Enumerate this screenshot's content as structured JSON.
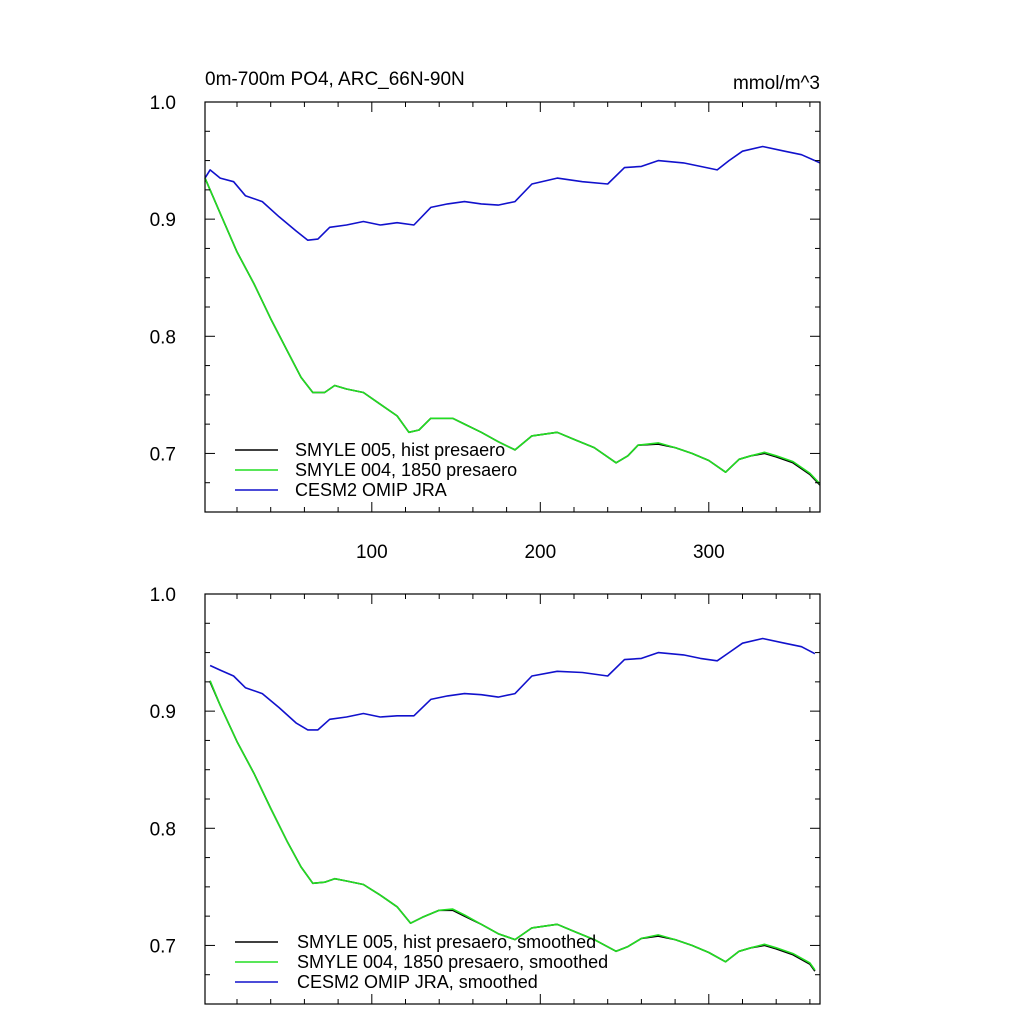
{
  "chart_data": [
    {
      "type": "line",
      "title": "0m-700m PO4, ARC_66N-90N",
      "units": "mmol/m^3",
      "xlim": [
        1,
        366
      ],
      "ylim": [
        0.65,
        1.0
      ],
      "x_ticks": [
        100,
        200,
        300
      ],
      "y_ticks": [
        0.7,
        0.8,
        0.9,
        1.0
      ],
      "y_tick_labels": [
        "0.7",
        "0.8",
        "0.9",
        "1.0"
      ],
      "x_tick_labels": [
        "100",
        "200",
        "300"
      ],
      "legend_position": "bottom-left",
      "series": [
        {
          "name": "SMYLE 005, hist presaero",
          "color": "#000000",
          "points": [
            [
              1,
              0.935
            ],
            [
              10,
              0.905
            ],
            [
              20,
              0.872
            ],
            [
              30,
              0.845
            ],
            [
              40,
              0.815
            ],
            [
              50,
              0.787
            ],
            [
              58,
              0.765
            ],
            [
              65,
              0.752
            ],
            [
              72,
              0.752
            ],
            [
              78,
              0.758
            ],
            [
              85,
              0.755
            ],
            [
              95,
              0.752
            ],
            [
              105,
              0.742
            ],
            [
              115,
              0.732
            ],
            [
              122,
              0.718
            ],
            [
              128,
              0.72
            ],
            [
              135,
              0.73
            ],
            [
              148,
              0.73
            ],
            [
              155,
              0.725
            ],
            [
              165,
              0.718
            ],
            [
              175,
              0.71
            ],
            [
              185,
              0.703
            ],
            [
              195,
              0.715
            ],
            [
              210,
              0.718
            ],
            [
              220,
              0.712
            ],
            [
              232,
              0.705
            ],
            [
              245,
              0.692
            ],
            [
              252,
              0.698
            ],
            [
              258,
              0.707
            ],
            [
              270,
              0.708
            ],
            [
              280,
              0.705
            ],
            [
              290,
              0.7
            ],
            [
              300,
              0.694
            ],
            [
              310,
              0.684
            ],
            [
              318,
              0.695
            ],
            [
              325,
              0.698
            ],
            [
              333,
              0.7
            ],
            [
              340,
              0.697
            ],
            [
              350,
              0.692
            ],
            [
              360,
              0.682
            ],
            [
              366,
              0.673
            ]
          ]
        },
        {
          "name": "SMYLE 004, 1850 presaero",
          "color": "#22dd22",
          "points": [
            [
              1,
              0.935
            ],
            [
              10,
              0.905
            ],
            [
              20,
              0.872
            ],
            [
              30,
              0.845
            ],
            [
              40,
              0.815
            ],
            [
              50,
              0.787
            ],
            [
              58,
              0.765
            ],
            [
              65,
              0.752
            ],
            [
              72,
              0.752
            ],
            [
              78,
              0.758
            ],
            [
              85,
              0.755
            ],
            [
              95,
              0.752
            ],
            [
              105,
              0.742
            ],
            [
              115,
              0.732
            ],
            [
              122,
              0.718
            ],
            [
              128,
              0.72
            ],
            [
              135,
              0.73
            ],
            [
              148,
              0.73
            ],
            [
              155,
              0.725
            ],
            [
              165,
              0.718
            ],
            [
              175,
              0.71
            ],
            [
              185,
              0.703
            ],
            [
              195,
              0.715
            ],
            [
              210,
              0.718
            ],
            [
              220,
              0.712
            ],
            [
              232,
              0.705
            ],
            [
              245,
              0.692
            ],
            [
              252,
              0.698
            ],
            [
              258,
              0.707
            ],
            [
              270,
              0.709
            ],
            [
              280,
              0.705
            ],
            [
              290,
              0.7
            ],
            [
              300,
              0.694
            ],
            [
              310,
              0.684
            ],
            [
              318,
              0.695
            ],
            [
              325,
              0.698
            ],
            [
              333,
              0.701
            ],
            [
              340,
              0.698
            ],
            [
              350,
              0.693
            ],
            [
              360,
              0.683
            ],
            [
              366,
              0.674
            ]
          ]
        },
        {
          "name": "CESM2 OMIP JRA",
          "color": "#1111cc",
          "points": [
            [
              1,
              0.935
            ],
            [
              4,
              0.942
            ],
            [
              10,
              0.935
            ],
            [
              18,
              0.932
            ],
            [
              25,
              0.92
            ],
            [
              35,
              0.915
            ],
            [
              45,
              0.902
            ],
            [
              55,
              0.89
            ],
            [
              62,
              0.882
            ],
            [
              68,
              0.883
            ],
            [
              75,
              0.893
            ],
            [
              85,
              0.895
            ],
            [
              95,
              0.898
            ],
            [
              105,
              0.895
            ],
            [
              115,
              0.897
            ],
            [
              125,
              0.895
            ],
            [
              135,
              0.91
            ],
            [
              145,
              0.913
            ],
            [
              155,
              0.915
            ],
            [
              165,
              0.913
            ],
            [
              175,
              0.912
            ],
            [
              185,
              0.915
            ],
            [
              195,
              0.93
            ],
            [
              210,
              0.935
            ],
            [
              225,
              0.932
            ],
            [
              240,
              0.93
            ],
            [
              250,
              0.944
            ],
            [
              260,
              0.945
            ],
            [
              270,
              0.95
            ],
            [
              285,
              0.948
            ],
            [
              295,
              0.945
            ],
            [
              305,
              0.942
            ],
            [
              312,
              0.95
            ],
            [
              320,
              0.958
            ],
            [
              332,
              0.962
            ],
            [
              345,
              0.958
            ],
            [
              355,
              0.955
            ],
            [
              366,
              0.948
            ]
          ]
        }
      ]
    },
    {
      "type": "line",
      "xlim": [
        1,
        366
      ],
      "ylim": [
        0.65,
        1.0
      ],
      "x_ticks": [
        100,
        200,
        300
      ],
      "y_ticks": [
        0.7,
        0.8,
        0.9,
        1.0
      ],
      "y_tick_labels": [
        "0.7",
        "0.8",
        "0.9",
        "1.0"
      ],
      "legend_position": "bottom-left",
      "series": [
        {
          "name": "SMYLE 005, hist presaero, smoothed",
          "color": "#000000",
          "points": [
            [
              4,
              0.925
            ],
            [
              10,
              0.905
            ],
            [
              20,
              0.874
            ],
            [
              30,
              0.847
            ],
            [
              40,
              0.817
            ],
            [
              50,
              0.788
            ],
            [
              58,
              0.767
            ],
            [
              65,
              0.753
            ],
            [
              72,
              0.754
            ],
            [
              78,
              0.757
            ],
            [
              85,
              0.755
            ],
            [
              95,
              0.752
            ],
            [
              105,
              0.743
            ],
            [
              115,
              0.733
            ],
            [
              123,
              0.719
            ],
            [
              130,
              0.724
            ],
            [
              140,
              0.73
            ],
            [
              148,
              0.73
            ],
            [
              155,
              0.725
            ],
            [
              165,
              0.718
            ],
            [
              175,
              0.71
            ],
            [
              185,
              0.705
            ],
            [
              195,
              0.715
            ],
            [
              210,
              0.718
            ],
            [
              220,
              0.712
            ],
            [
              232,
              0.705
            ],
            [
              245,
              0.695
            ],
            [
              252,
              0.699
            ],
            [
              260,
              0.706
            ],
            [
              270,
              0.708
            ],
            [
              280,
              0.705
            ],
            [
              290,
              0.7
            ],
            [
              300,
              0.694
            ],
            [
              310,
              0.686
            ],
            [
              318,
              0.695
            ],
            [
              325,
              0.698
            ],
            [
              333,
              0.7
            ],
            [
              340,
              0.697
            ],
            [
              350,
              0.692
            ],
            [
              360,
              0.684
            ],
            [
              363,
              0.678
            ]
          ]
        },
        {
          "name": "SMYLE 004, 1850 presaero, smoothed",
          "color": "#22dd22",
          "points": [
            [
              4,
              0.926
            ],
            [
              10,
              0.905
            ],
            [
              20,
              0.874
            ],
            [
              30,
              0.847
            ],
            [
              40,
              0.817
            ],
            [
              50,
              0.788
            ],
            [
              58,
              0.767
            ],
            [
              65,
              0.753
            ],
            [
              72,
              0.754
            ],
            [
              78,
              0.757
            ],
            [
              85,
              0.755
            ],
            [
              95,
              0.752
            ],
            [
              105,
              0.743
            ],
            [
              115,
              0.733
            ],
            [
              123,
              0.719
            ],
            [
              130,
              0.724
            ],
            [
              140,
              0.73
            ],
            [
              148,
              0.731
            ],
            [
              155,
              0.726
            ],
            [
              165,
              0.718
            ],
            [
              175,
              0.71
            ],
            [
              185,
              0.705
            ],
            [
              195,
              0.715
            ],
            [
              210,
              0.718
            ],
            [
              220,
              0.712
            ],
            [
              232,
              0.705
            ],
            [
              245,
              0.695
            ],
            [
              252,
              0.699
            ],
            [
              260,
              0.706
            ],
            [
              270,
              0.709
            ],
            [
              280,
              0.705
            ],
            [
              290,
              0.7
            ],
            [
              300,
              0.694
            ],
            [
              310,
              0.686
            ],
            [
              318,
              0.695
            ],
            [
              325,
              0.698
            ],
            [
              333,
              0.701
            ],
            [
              340,
              0.698
            ],
            [
              350,
              0.693
            ],
            [
              360,
              0.685
            ],
            [
              363,
              0.679
            ]
          ]
        },
        {
          "name": "CESM2 OMIP JRA, smoothed",
          "color": "#1111cc",
          "points": [
            [
              4,
              0.939
            ],
            [
              10,
              0.935
            ],
            [
              18,
              0.93
            ],
            [
              25,
              0.92
            ],
            [
              35,
              0.915
            ],
            [
              45,
              0.903
            ],
            [
              55,
              0.89
            ],
            [
              62,
              0.884
            ],
            [
              68,
              0.884
            ],
            [
              75,
              0.893
            ],
            [
              85,
              0.895
            ],
            [
              95,
              0.898
            ],
            [
              105,
              0.895
            ],
            [
              115,
              0.896
            ],
            [
              125,
              0.896
            ],
            [
              135,
              0.91
            ],
            [
              145,
              0.913
            ],
            [
              155,
              0.915
            ],
            [
              165,
              0.914
            ],
            [
              175,
              0.912
            ],
            [
              185,
              0.915
            ],
            [
              195,
              0.93
            ],
            [
              210,
              0.934
            ],
            [
              225,
              0.933
            ],
            [
              240,
              0.93
            ],
            [
              250,
              0.944
            ],
            [
              260,
              0.945
            ],
            [
              270,
              0.95
            ],
            [
              285,
              0.948
            ],
            [
              295,
              0.945
            ],
            [
              305,
              0.943
            ],
            [
              312,
              0.95
            ],
            [
              320,
              0.958
            ],
            [
              332,
              0.962
            ],
            [
              345,
              0.958
            ],
            [
              355,
              0.955
            ],
            [
              363,
              0.949
            ]
          ]
        }
      ]
    }
  ]
}
